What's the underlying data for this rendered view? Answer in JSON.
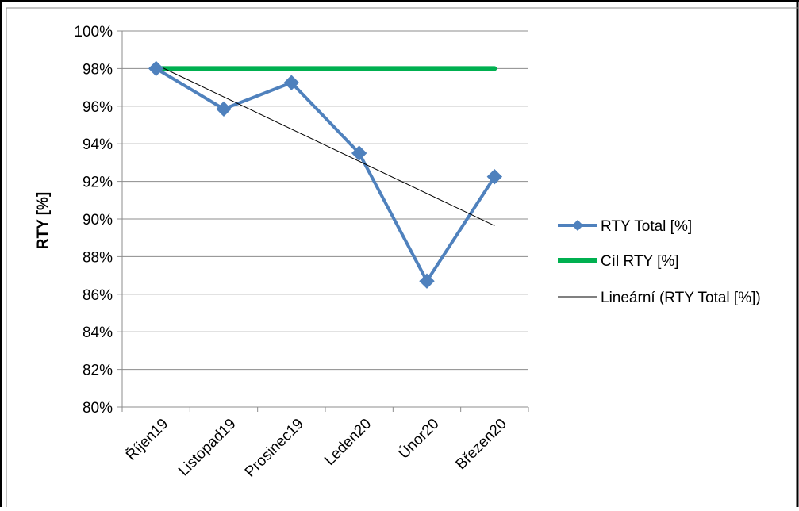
{
  "chart_data": {
    "type": "line",
    "categories": [
      "Říjen19",
      "Listopad19",
      "Prosinec19",
      "Leden20",
      "Únor20",
      "Březen20"
    ],
    "series": [
      {
        "name": "RTY Total [%]",
        "values": [
          98.0,
          95.85,
          97.25,
          93.5,
          86.7,
          92.25
        ],
        "color": "#4F81BD",
        "marker": "diamond"
      },
      {
        "name": "Cíl RTY [%]",
        "values": [
          98,
          98,
          98,
          98,
          98,
          98
        ],
        "color": "#00B050"
      },
      {
        "name": "Lineární (RTY Total [%])",
        "trendline_of": "RTY Total [%]",
        "color": "#000000"
      }
    ],
    "ylabel": "RTY [%]",
    "ylim": [
      80,
      100
    ],
    "yticks": [
      "80%",
      "82%",
      "84%",
      "86%",
      "88%",
      "90%",
      "92%",
      "94%",
      "96%",
      "98%",
      "100%"
    ],
    "grid": true,
    "legend": "right"
  }
}
